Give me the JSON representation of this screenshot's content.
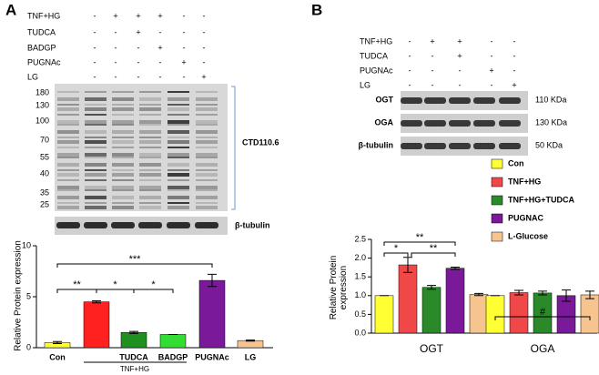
{
  "panel_a": {
    "label": "A",
    "treatments": [
      {
        "name": "TNF+HG",
        "signs": [
          "-",
          "+",
          "+",
          "+",
          "-",
          "-"
        ]
      },
      {
        "name": "TUDCA",
        "signs": [
          "-",
          "-",
          "+",
          "-",
          "-",
          "-"
        ]
      },
      {
        "name": "BADGP",
        "signs": [
          "-",
          "-",
          "-",
          "+",
          "-",
          "-"
        ]
      },
      {
        "name": "PUGNAc",
        "signs": [
          "-",
          "-",
          "-",
          "-",
          "+",
          "-"
        ]
      },
      {
        "name": "LG",
        "signs": [
          "-",
          "-",
          "-",
          "-",
          "-",
          "+"
        ]
      }
    ],
    "markers": [
      180,
      130,
      100,
      70,
      55,
      40,
      35,
      25
    ],
    "blot_labels": [
      "CTD110.6",
      "β-tubulin"
    ]
  },
  "panel_b": {
    "label": "B",
    "treatments": [
      {
        "name": "TNF+HG",
        "signs": [
          "-",
          "+",
          "+",
          "-",
          "-"
        ]
      },
      {
        "name": "TUDCA",
        "signs": [
          "-",
          "-",
          "+",
          "-",
          "-"
        ]
      },
      {
        "name": "PUGNAc",
        "signs": [
          "-",
          "-",
          "-",
          "+",
          "-"
        ]
      },
      {
        "name": "LG",
        "signs": [
          "-",
          "-",
          "-",
          "-",
          "+"
        ]
      }
    ],
    "blots": [
      {
        "name": "OGT",
        "size": "110 KDa"
      },
      {
        "name": "OGA",
        "size": "130 KDa"
      },
      {
        "name": "β-tubulin",
        "size": "50 KDa"
      }
    ]
  },
  "chart_data": [
    {
      "type": "bar",
      "ylabel": "Relative Protein expression",
      "categories": [
        "Con",
        null,
        "TUDCA",
        "BADGP",
        "PUGNAc",
        "LG"
      ],
      "group_label": "TNF+HG",
      "values": [
        0.5,
        4.5,
        1.5,
        1.3,
        6.6,
        0.7
      ],
      "errors": [
        0.1,
        0.1,
        0.1,
        0,
        0.6,
        0.05
      ],
      "colors": [
        "#ffff33",
        "#ff2020",
        "#1f8f1f",
        "#33dd33",
        "#7a1a9a",
        "#f5c48f"
      ],
      "ylim": [
        0,
        10
      ],
      "yticks": [
        0,
        5,
        10
      ],
      "annotations": [
        "**",
        "*",
        "*",
        "***"
      ]
    },
    {
      "type": "grouped-bar",
      "ylabel": "Relative Protein expression",
      "categories": [
        "OGT",
        "OGA"
      ],
      "series": [
        {
          "name": "Con",
          "color": "#ffff33",
          "values": [
            1.0,
            1.0
          ],
          "errors": [
            0,
            0
          ]
        },
        {
          "name": "TNF+HG",
          "color": "#f04848",
          "values": [
            1.82,
            1.08
          ],
          "errors": [
            0.2,
            0.06
          ]
        },
        {
          "name": "TNF+HG+TUDCA",
          "color": "#2a8a2a",
          "values": [
            1.22,
            1.07
          ],
          "errors": [
            0.05,
            0.05
          ]
        },
        {
          "name": "PUGNAC",
          "color": "#7a1a9a",
          "values": [
            1.73,
            1.0
          ],
          "errors": [
            0.03,
            0.15
          ]
        },
        {
          "name": "L-Glucose",
          "color": "#f5c48f",
          "values": [
            1.03,
            1.02
          ],
          "errors": [
            0.03,
            0.1
          ]
        }
      ],
      "ylim": [
        0,
        2.5
      ],
      "yticks": [
        {
          "value": 0,
          "label": "0.0"
        },
        0.5,
        {
          "value": 1,
          "label": "1.0"
        },
        1.5,
        {
          "value": 2,
          "label": "2.0"
        },
        2.5
      ],
      "annotations": [
        "*",
        "**",
        "**",
        "#"
      ]
    }
  ]
}
